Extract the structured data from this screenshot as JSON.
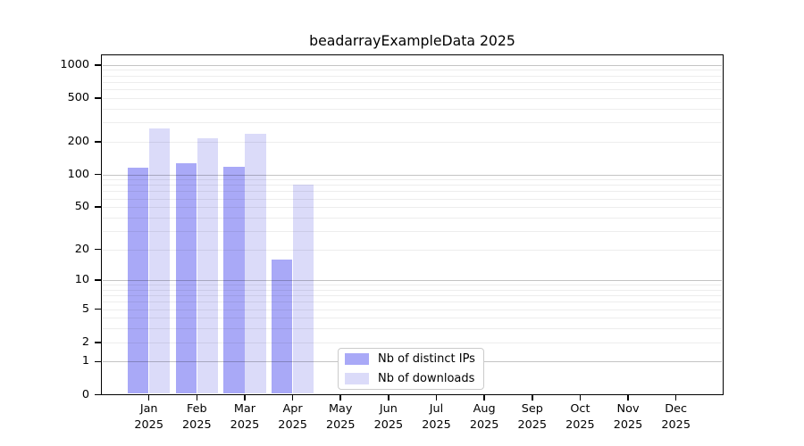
{
  "chart_data": {
    "type": "bar",
    "title": "beadarrayExampleData 2025",
    "categories": [
      "Jan 2025",
      "Feb 2025",
      "Mar 2025",
      "Apr 2025",
      "May 2025",
      "Jun 2025",
      "Jul 2025",
      "Aug 2025",
      "Sep 2025",
      "Oct 2025",
      "Nov 2025",
      "Dec 2025"
    ],
    "series": [
      {
        "name": "Nb of distinct IPs",
        "color": "#a9a9f7",
        "values": [
          115,
          126,
          117,
          16,
          0,
          0,
          0,
          0,
          0,
          0,
          0,
          0
        ]
      },
      {
        "name": "Nb of downloads",
        "color": "#dbdbf9",
        "values": [
          265,
          215,
          235,
          81,
          0,
          0,
          0,
          0,
          0,
          0,
          0,
          0
        ]
      }
    ],
    "y_axis": {
      "scale": "log1p",
      "ticks": [
        0,
        1,
        2,
        5,
        10,
        20,
        50,
        100,
        200,
        500,
        1000
      ],
      "minor_gridlines": [
        2,
        3,
        4,
        5,
        6,
        7,
        8,
        9,
        20,
        30,
        40,
        50,
        60,
        70,
        80,
        90,
        200,
        300,
        400,
        500,
        600,
        700,
        800,
        900
      ],
      "major_gridlines": [
        1,
        10,
        100,
        1000
      ]
    },
    "grid": {
      "horizontal": true,
      "vertical": false
    },
    "legend": {
      "position": "inside-bottom-center"
    },
    "colors": {
      "background": "#ffffff",
      "axis": "#000000",
      "text": "#000000"
    }
  }
}
